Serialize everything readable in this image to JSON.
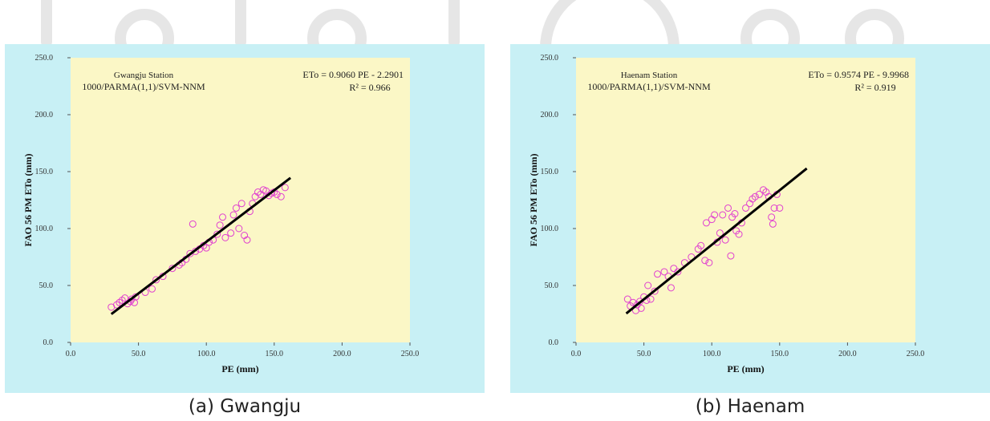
{
  "chart_data": [
    {
      "type": "scatter",
      "station": "Gwangju Station",
      "model": "1000/PARMA(1,1)/SVM-NNM",
      "equation": "ETo = 0.9060 PE - 2.2901",
      "r2": "R² = 0.966",
      "xlabel": "PE (mm)",
      "ylabel": "FAO 56 PM ETo (mm)",
      "xlim": [
        0,
        250
      ],
      "ylim": [
        0,
        250
      ],
      "xticks": [
        "0.0",
        "50.0",
        "100.0",
        "150.0",
        "200.0",
        "250.0"
      ],
      "yticks": [
        "0.0",
        "50.0",
        "100.0",
        "150.0",
        "200.0",
        "250.0"
      ],
      "regression": {
        "slope": 0.906,
        "intercept": -2.2901,
        "x_range": [
          30,
          162
        ]
      },
      "colors": {
        "background": "#c8f0f5",
        "plot_area": "#fbf7c6",
        "points": "#e040d0",
        "line": "#000000"
      },
      "points": [
        [
          30,
          31
        ],
        [
          34,
          33
        ],
        [
          36,
          35
        ],
        [
          38,
          37
        ],
        [
          40,
          39
        ],
        [
          42,
          34
        ],
        [
          44,
          36
        ],
        [
          45,
          38
        ],
        [
          47,
          35
        ],
        [
          48,
          40
        ],
        [
          55,
          44
        ],
        [
          60,
          47
        ],
        [
          63,
          55
        ],
        [
          68,
          58
        ],
        [
          75,
          65
        ],
        [
          80,
          68
        ],
        [
          82,
          70
        ],
        [
          85,
          73
        ],
        [
          88,
          78
        ],
        [
          90,
          104
        ],
        [
          92,
          80
        ],
        [
          95,
          82
        ],
        [
          98,
          85
        ],
        [
          100,
          83
        ],
        [
          102,
          88
        ],
        [
          105,
          90
        ],
        [
          108,
          95
        ],
        [
          110,
          103
        ],
        [
          112,
          110
        ],
        [
          114,
          92
        ],
        [
          118,
          96
        ],
        [
          120,
          112
        ],
        [
          122,
          118
        ],
        [
          124,
          100
        ],
        [
          126,
          122
        ],
        [
          128,
          94
        ],
        [
          130,
          90
        ],
        [
          132,
          115
        ],
        [
          134,
          122
        ],
        [
          136,
          128
        ],
        [
          138,
          132
        ],
        [
          140,
          130
        ],
        [
          142,
          134
        ],
        [
          144,
          133
        ],
        [
          146,
          129
        ],
        [
          148,
          131
        ],
        [
          150,
          132
        ],
        [
          152,
          130
        ],
        [
          155,
          128
        ],
        [
          158,
          136
        ]
      ]
    },
    {
      "type": "scatter",
      "station": "Haenam Station",
      "model": "1000/PARMA(1,1)/SVM-NNM",
      "equation": "ETo = 0.9574 PE - 9.9968",
      "r2": "R² = 0.919",
      "xlabel": "PE (mm)",
      "ylabel": "FAO 56 PM ETo (mm)",
      "xlim": [
        0,
        250
      ],
      "ylim": [
        0,
        250
      ],
      "xticks": [
        "0.0",
        "50.0",
        "100.0",
        "150.0",
        "200.0",
        "250.0"
      ],
      "yticks": [
        "0.0",
        "50.0",
        "100.0",
        "150.0",
        "200.0",
        "250.0"
      ],
      "regression": {
        "slope": 0.9574,
        "intercept": -9.9968,
        "x_range": [
          37,
          170
        ]
      },
      "colors": {
        "background": "#c8f0f5",
        "plot_area": "#fbf7c6",
        "points": "#e040d0",
        "line": "#000000"
      },
      "points": [
        [
          38,
          38
        ],
        [
          40,
          32
        ],
        [
          42,
          35
        ],
        [
          44,
          28
        ],
        [
          45,
          33
        ],
        [
          47,
          36
        ],
        [
          48,
          30
        ],
        [
          50,
          40
        ],
        [
          52,
          37
        ],
        [
          53,
          50
        ],
        [
          55,
          38
        ],
        [
          58,
          45
        ],
        [
          60,
          60
        ],
        [
          65,
          62
        ],
        [
          68,
          58
        ],
        [
          70,
          48
        ],
        [
          72,
          65
        ],
        [
          75,
          62
        ],
        [
          80,
          70
        ],
        [
          85,
          75
        ],
        [
          90,
          82
        ],
        [
          92,
          85
        ],
        [
          95,
          72
        ],
        [
          96,
          105
        ],
        [
          98,
          70
        ],
        [
          100,
          108
        ],
        [
          102,
          112
        ],
        [
          104,
          88
        ],
        [
          106,
          96
        ],
        [
          108,
          112
        ],
        [
          110,
          90
        ],
        [
          112,
          118
        ],
        [
          114,
          76
        ],
        [
          115,
          110
        ],
        [
          117,
          113
        ],
        [
          118,
          98
        ],
        [
          120,
          95
        ],
        [
          122,
          105
        ],
        [
          125,
          118
        ],
        [
          128,
          122
        ],
        [
          130,
          126
        ],
        [
          132,
          128
        ],
        [
          135,
          130
        ],
        [
          138,
          134
        ],
        [
          140,
          132
        ],
        [
          142,
          128
        ],
        [
          144,
          110
        ],
        [
          146,
          118
        ],
        [
          148,
          130
        ],
        [
          150,
          118
        ],
        [
          145,
          104
        ]
      ]
    }
  ],
  "captions": [
    "(a) Gwangju",
    "(b) Haenam"
  ]
}
